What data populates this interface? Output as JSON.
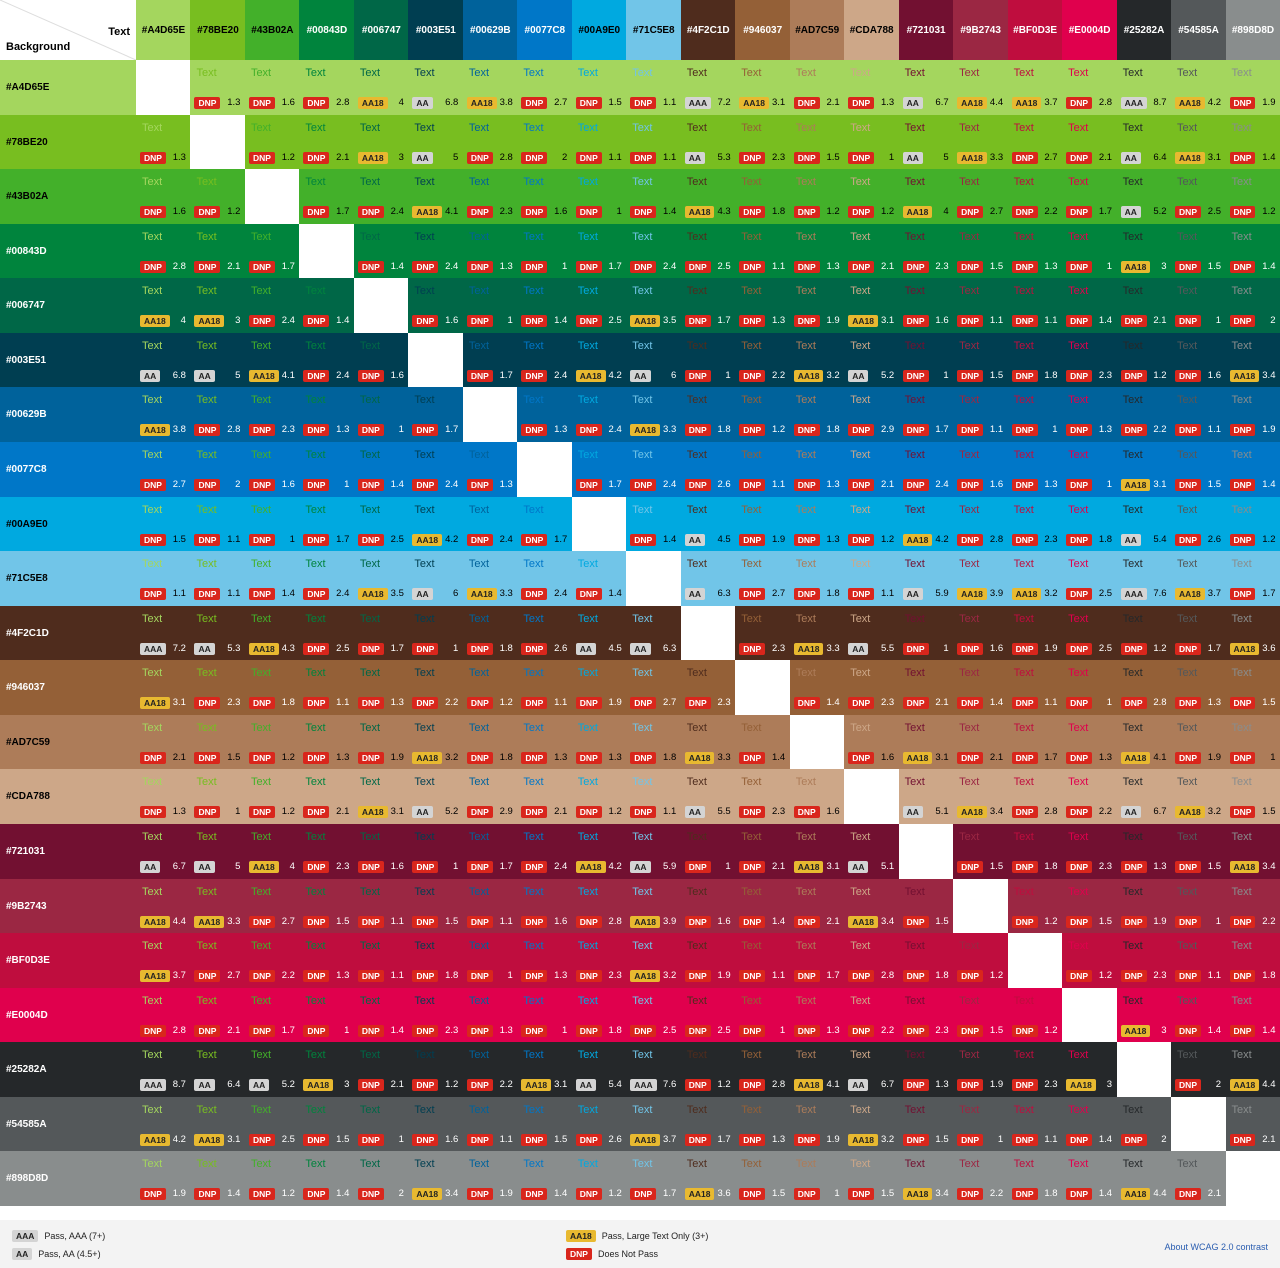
{
  "corner": {
    "text_label": "Text",
    "background_label": "Background"
  },
  "colors": [
    "#A4D65E",
    "#78BE20",
    "#43B02A",
    "#00843D",
    "#006747",
    "#003E51",
    "#00629B",
    "#0077C8",
    "#00A9E0",
    "#71C5E8",
    "#4F2C1D",
    "#946037",
    "#AD7C59",
    "#CDA788",
    "#721031",
    "#9B2743",
    "#BF0D3E",
    "#E0004D",
    "#25282A",
    "#54585A",
    "#898D8D"
  ],
  "header_text_colors": [
    "#000",
    "#000",
    "#000",
    "#fff",
    "#fff",
    "#fff",
    "#fff",
    "#fff",
    "#000",
    "#000",
    "#fff",
    "#fff",
    "#000",
    "#000",
    "#fff",
    "#fff",
    "#fff",
    "#fff",
    "#fff",
    "#fff",
    "#fff"
  ],
  "sample_text": "Text",
  "matrix": [
    [
      null,
      1.3,
      1.6,
      2.8,
      4,
      6.8,
      3.8,
      2.7,
      1.5,
      1.1,
      7.2,
      3.1,
      2.1,
      1.3,
      6.7,
      4.4,
      3.7,
      2.8,
      8.7,
      4.2,
      1.9
    ],
    [
      1.3,
      null,
      1.2,
      2.1,
      3,
      5,
      2.8,
      2,
      1.1,
      1.1,
      5.3,
      2.3,
      1.5,
      1,
      5,
      3.3,
      2.7,
      2.1,
      6.4,
      3.1,
      1.4
    ],
    [
      1.6,
      1.2,
      null,
      1.7,
      2.4,
      4.1,
      2.3,
      1.6,
      1,
      1.4,
      4.3,
      1.8,
      1.2,
      1.2,
      4,
      2.7,
      2.2,
      1.7,
      5.2,
      2.5,
      1.2
    ],
    [
      2.8,
      2.1,
      1.7,
      null,
      1.4,
      2.4,
      1.3,
      1,
      1.7,
      2.4,
      2.5,
      1.1,
      1.3,
      2.1,
      2.3,
      1.5,
      1.3,
      1,
      3,
      1.5,
      1.4
    ],
    [
      4,
      3,
      2.4,
      1.4,
      null,
      1.6,
      1,
      1.4,
      2.5,
      3.5,
      1.7,
      1.3,
      1.9,
      3.1,
      1.6,
      1.1,
      1.1,
      1.4,
      2.1,
      1,
      2
    ],
    [
      6.8,
      5,
      4.1,
      2.4,
      1.6,
      null,
      1.7,
      2.4,
      4.2,
      6,
      1,
      2.2,
      3.2,
      5.2,
      1,
      1.5,
      1.8,
      2.3,
      1.2,
      1.6,
      3.4
    ],
    [
      3.8,
      2.8,
      2.3,
      1.3,
      1,
      1.7,
      null,
      1.3,
      2.4,
      3.3,
      1.8,
      1.2,
      1.8,
      2.9,
      1.7,
      1.1,
      1,
      1.3,
      2.2,
      1.1,
      1.9
    ],
    [
      2.7,
      2,
      1.6,
      1,
      1.4,
      2.4,
      1.3,
      null,
      1.7,
      2.4,
      2.6,
      1.1,
      1.3,
      2.1,
      2.4,
      1.6,
      1.3,
      1,
      3.1,
      1.5,
      1.4
    ],
    [
      1.5,
      1.1,
      1,
      1.7,
      2.5,
      4.2,
      2.4,
      1.7,
      null,
      1.4,
      4.5,
      1.9,
      1.3,
      1.2,
      4.2,
      2.8,
      2.3,
      1.8,
      5.4,
      2.6,
      1.2
    ],
    [
      1.1,
      1.1,
      1.4,
      2.4,
      3.5,
      6,
      3.3,
      2.4,
      1.4,
      null,
      6.3,
      2.7,
      1.8,
      1.1,
      5.9,
      3.9,
      3.2,
      2.5,
      7.6,
      3.7,
      1.7
    ],
    [
      7.2,
      5.3,
      4.3,
      2.5,
      1.7,
      1,
      1.8,
      2.6,
      4.5,
      6.3,
      null,
      2.3,
      3.3,
      5.5,
      1,
      1.6,
      1.9,
      2.5,
      1.2,
      1.7,
      3.6
    ],
    [
      3.1,
      2.3,
      1.8,
      1.1,
      1.3,
      2.2,
      1.2,
      1.1,
      1.9,
      2.7,
      2.3,
      null,
      1.4,
      2.3,
      2.1,
      1.4,
      1.1,
      1,
      2.8,
      1.3,
      1.5
    ],
    [
      2.1,
      1.5,
      1.2,
      1.3,
      1.9,
      3.2,
      1.8,
      1.3,
      1.3,
      1.8,
      3.3,
      1.4,
      null,
      1.6,
      3.1,
      2.1,
      1.7,
      1.3,
      4.1,
      1.9,
      1
    ],
    [
      1.3,
      1,
      1.2,
      2.1,
      3.1,
      5.2,
      2.9,
      2.1,
      1.2,
      1.1,
      5.5,
      2.3,
      1.6,
      null,
      5.1,
      3.4,
      2.8,
      2.2,
      6.7,
      3.2,
      1.5
    ],
    [
      6.7,
      5,
      4,
      2.3,
      1.6,
      1,
      1.7,
      2.4,
      4.2,
      5.9,
      1,
      2.1,
      3.1,
      5.1,
      null,
      1.5,
      1.8,
      2.3,
      1.3,
      1.5,
      3.4
    ],
    [
      4.4,
      3.3,
      2.7,
      1.5,
      1.1,
      1.5,
      1.1,
      1.6,
      2.8,
      3.9,
      1.6,
      1.4,
      2.1,
      3.4,
      1.5,
      null,
      1.2,
      1.5,
      1.9,
      1,
      2.2
    ],
    [
      3.7,
      2.7,
      2.2,
      1.3,
      1.1,
      1.8,
      1,
      1.3,
      2.3,
      3.2,
      1.9,
      1.1,
      1.7,
      2.8,
      1.8,
      1.2,
      null,
      1.2,
      2.3,
      1.1,
      1.8
    ],
    [
      2.8,
      2.1,
      1.7,
      1,
      1.4,
      2.3,
      1.3,
      1,
      1.8,
      2.5,
      2.5,
      1,
      1.3,
      2.2,
      2.3,
      1.5,
      1.2,
      null,
      3,
      1.4,
      1.4
    ],
    [
      8.7,
      6.4,
      5.2,
      3,
      2.1,
      1.2,
      2.2,
      3.1,
      5.4,
      7.6,
      1.2,
      2.8,
      4.1,
      6.7,
      1.3,
      1.9,
      2.3,
      3,
      null,
      2,
      4.4
    ],
    [
      4.2,
      3.1,
      2.5,
      1.5,
      1,
      1.6,
      1.1,
      1.5,
      2.6,
      3.7,
      1.7,
      1.3,
      1.9,
      3.2,
      1.5,
      1,
      1.1,
      1.4,
      2,
      null,
      2.1
    ],
    [
      1.9,
      1.4,
      1.2,
      1.4,
      2,
      3.4,
      1.9,
      1.4,
      1.2,
      1.7,
      3.6,
      1.5,
      1,
      1.5,
      3.4,
      2.2,
      1.8,
      1.4,
      4.4,
      2.1,
      null
    ]
  ],
  "badge_colors": {
    "AAA": "#d4d4d4",
    "AA": "#d4d4d4",
    "AA18": "#e8b930",
    "DNP": "#d9261c"
  },
  "legend": {
    "aaa": {
      "badge": "AAA",
      "label": "Pass, AAA (7+)"
    },
    "aa": {
      "badge": "AA",
      "label": "Pass, AA (4.5+)"
    },
    "aa18": {
      "badge": "AA18",
      "label": "Pass, Large Text Only (3+)"
    },
    "dnp": {
      "badge": "DNP",
      "label": "Does Not Pass"
    },
    "about_link": "About WCAG 2.0 contrast"
  }
}
